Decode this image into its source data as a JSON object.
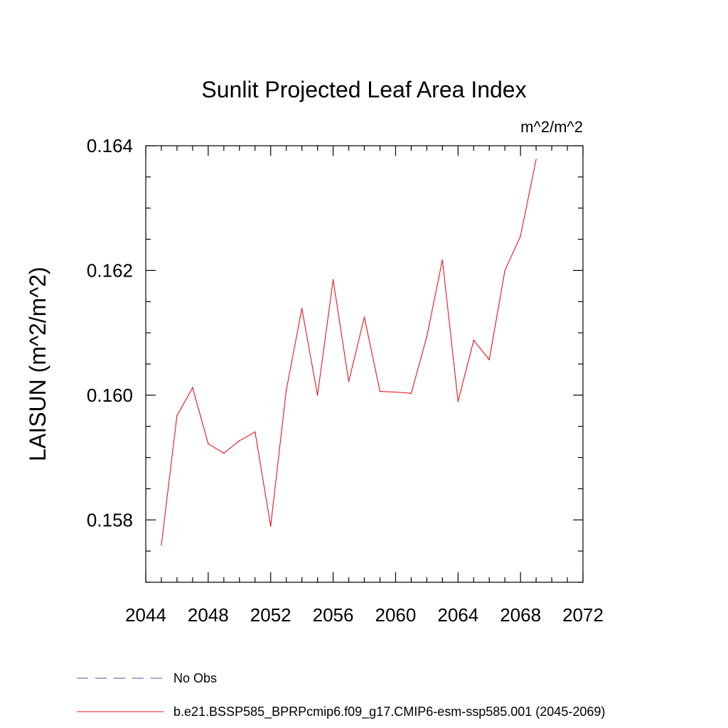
{
  "chart_data": {
    "type": "line",
    "title": "Sunlit Projected Leaf Area Index",
    "units": "m^2/m^2",
    "ylabel": "LAISUN  (m^2/m^2)",
    "xlabel": "",
    "xlim": [
      2044,
      2072
    ],
    "ylim": [
      0.157,
      0.164
    ],
    "x_ticks": [
      2044,
      2048,
      2052,
      2056,
      2060,
      2064,
      2068,
      2072
    ],
    "x_tick_labels": [
      "2044",
      "2048",
      "2052",
      "2056",
      "2060",
      "2064",
      "2068",
      "2072"
    ],
    "y_ticks": [
      0.158,
      0.16,
      0.162,
      0.164
    ],
    "y_tick_labels": [
      "0.158",
      "0.160",
      "0.162",
      "0.164"
    ],
    "grid": false,
    "legend_position": "bottom",
    "series": [
      {
        "name": "b.e21.BSSP585_BPRPcmip6.f09_g17.CMIP6-esm-ssp585.001 (2045-2069)",
        "color": "#e8141c",
        "style": "solid",
        "x": [
          2045,
          2046,
          2047,
          2048,
          2049,
          2050,
          2051,
          2052,
          2053,
          2054,
          2055,
          2056,
          2057,
          2058,
          2059,
          2060,
          2061,
          2062,
          2063,
          2064,
          2065,
          2066,
          2067,
          2068,
          2069
        ],
        "values": [
          0.1576,
          0.15967,
          0.16012,
          0.15922,
          0.15907,
          0.15927,
          0.15941,
          0.1579,
          0.16008,
          0.16139,
          0.16,
          0.16185,
          0.16022,
          0.16125,
          0.16006,
          0.16005,
          0.16003,
          0.16094,
          0.16217,
          0.1599,
          0.16088,
          0.16057,
          0.162,
          0.16255,
          0.16378
        ]
      }
    ],
    "legend": [
      {
        "label": "No Obs",
        "color": "#5a4a9a",
        "style": "dashed"
      },
      {
        "label": "b.e21.BSSP585_BPRPcmip6.f09_g17.CMIP6-esm-ssp585.001 (2045-2069)",
        "color": "#e8141c",
        "style": "solid"
      }
    ]
  }
}
